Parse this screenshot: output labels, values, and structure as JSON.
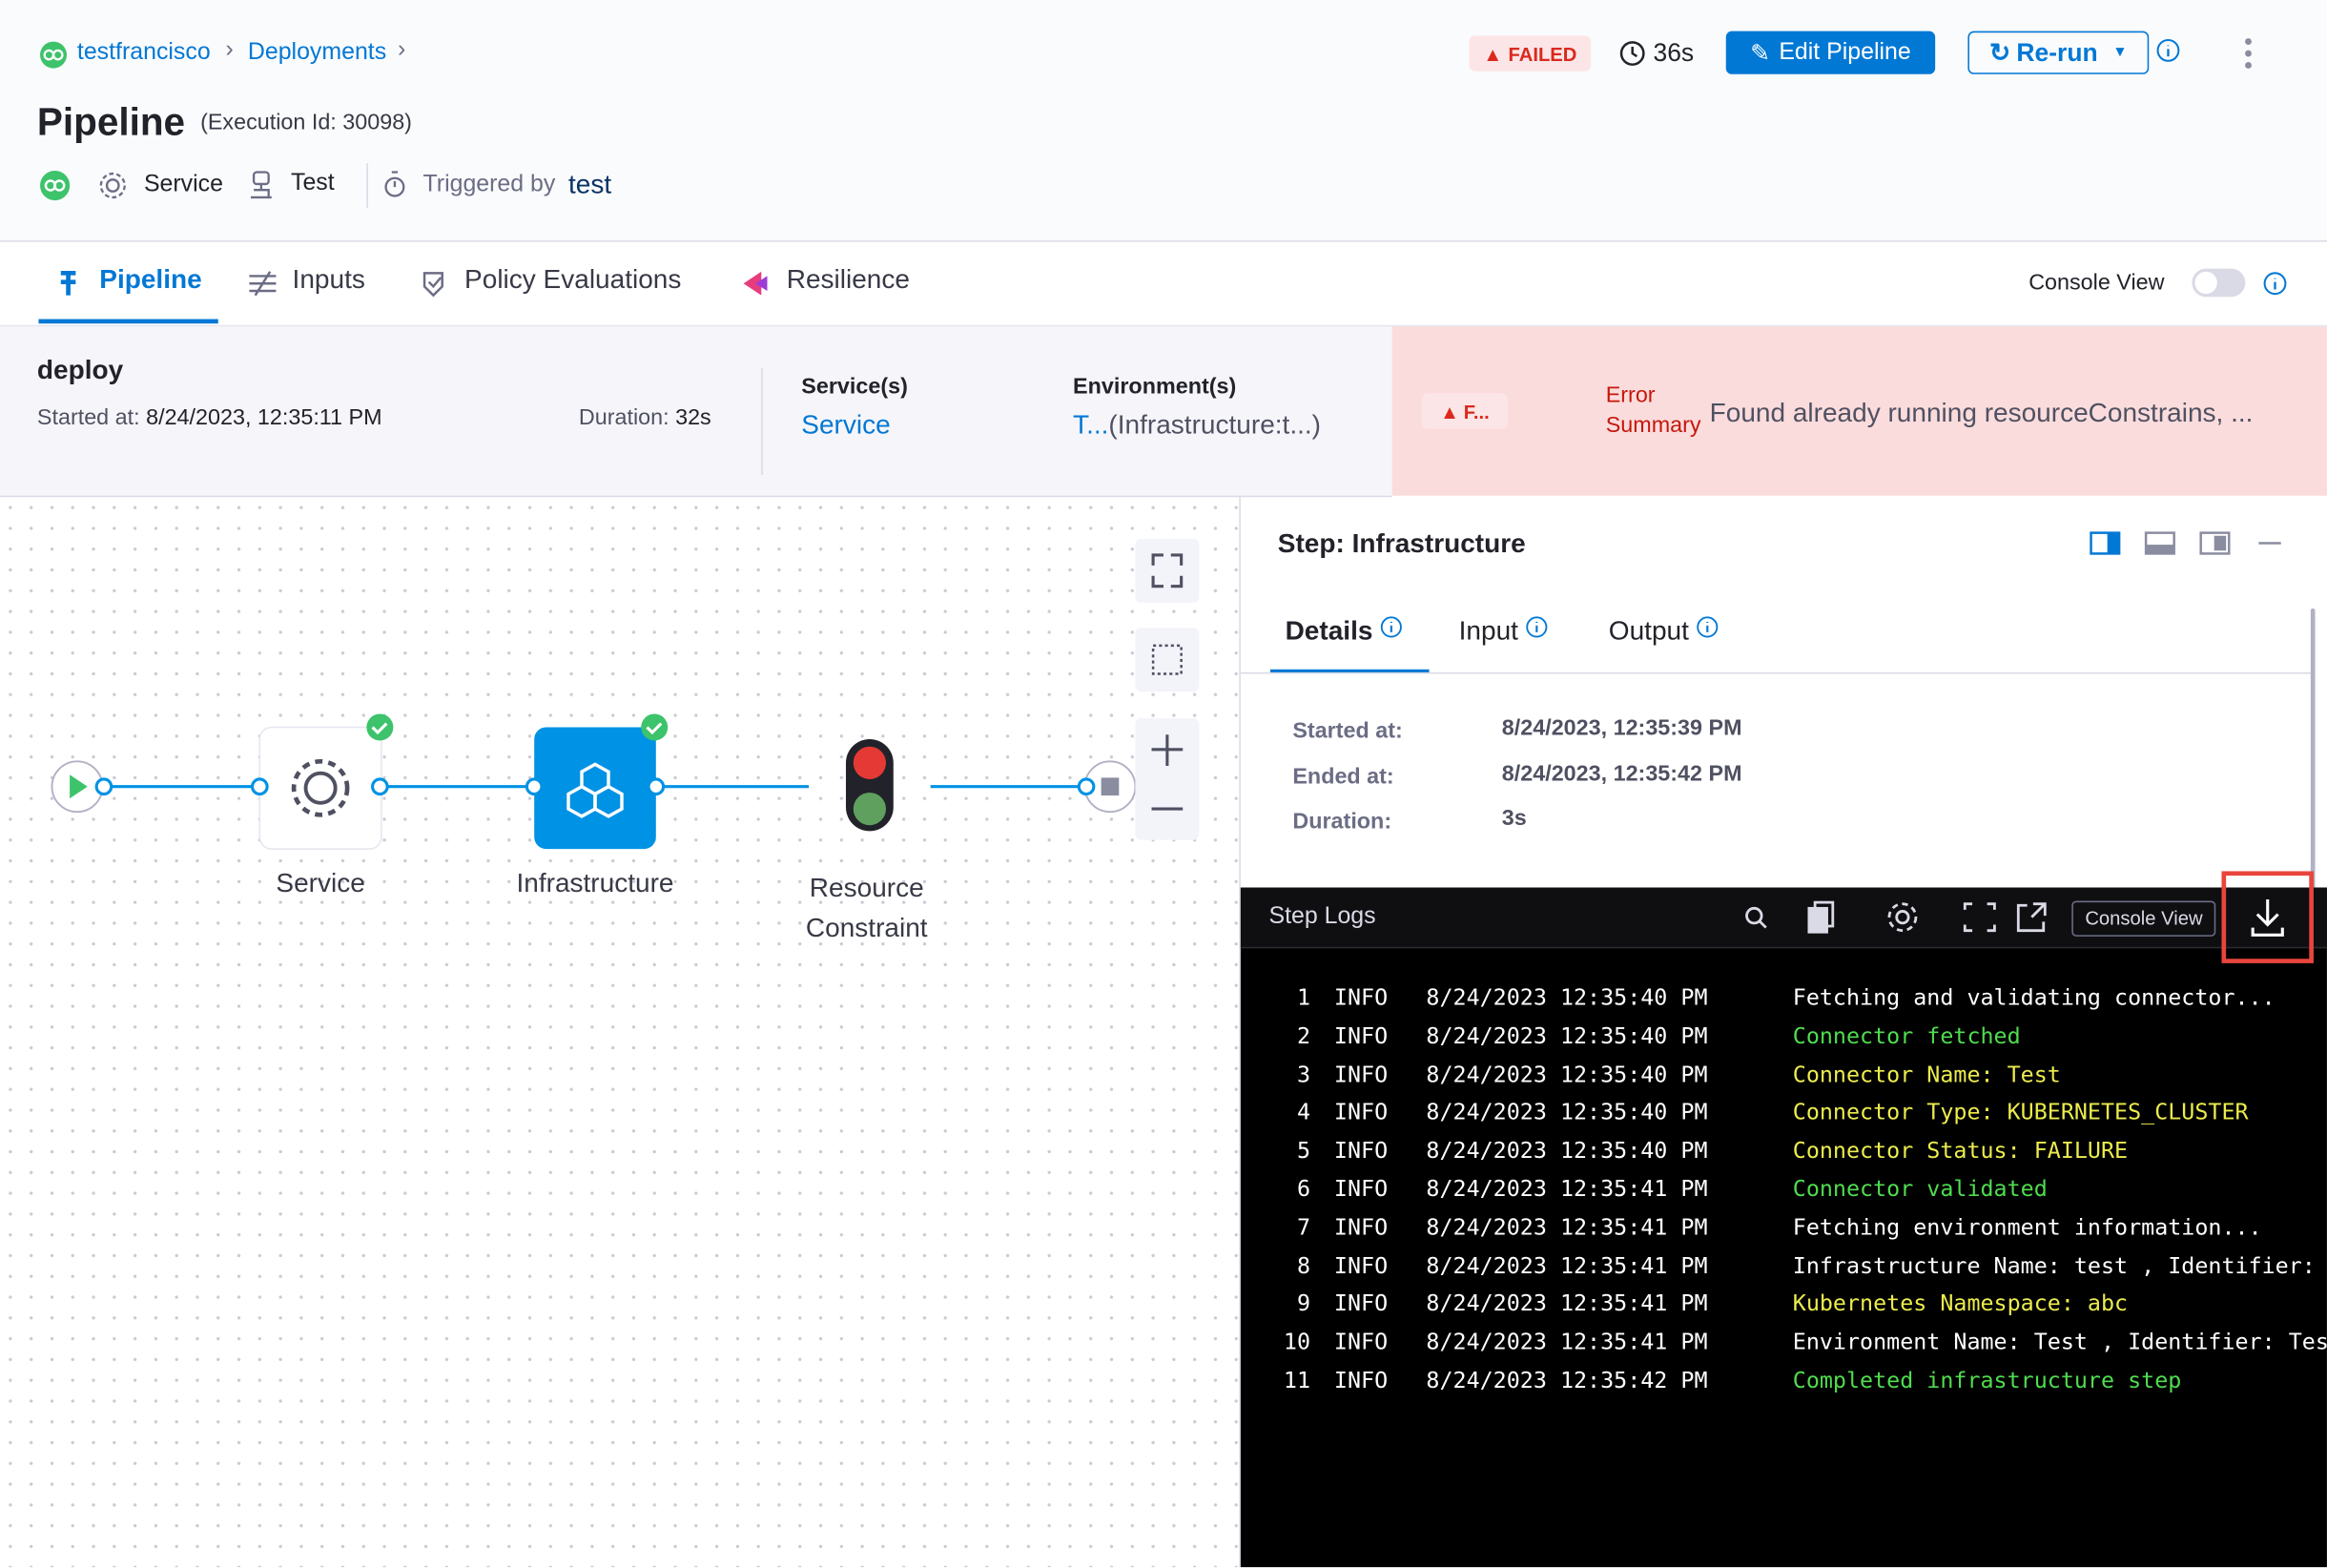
{
  "breadcrumbs": [
    "testfrancisco",
    "Deployments"
  ],
  "header": {
    "status": "FAILED",
    "duration": "36s",
    "edit_button": "Edit Pipeline",
    "rerun_button": "Re-run",
    "title": "Pipeline",
    "execution_id": "(Execution Id: 30098)",
    "service": "Service",
    "environment": "Test",
    "triggered_by_label": "Triggered by",
    "triggered_by": "test"
  },
  "tabs": [
    "Pipeline",
    "Inputs",
    "Policy Evaluations",
    "Resilience"
  ],
  "console_view_label": "Console View",
  "stage": {
    "name": "deploy",
    "started_label": "Started at:",
    "started": "8/24/2023, 12:35:11 PM",
    "duration_label": "Duration:",
    "duration": "32s",
    "services_label": "Service(s)",
    "services": "Service",
    "environments_label": "Environment(s)",
    "environment": "T...",
    "infrastructure": "(Infrastructure:t...)",
    "status": "F...",
    "error_label": "Error Summary",
    "error": "Found already running resourceConstrains, ..."
  },
  "graph": {
    "nodes": [
      "Service",
      "Infrastructure",
      "Resource Constraint"
    ]
  },
  "step": {
    "title": "Step: Infrastructure",
    "tabs": [
      "Details",
      "Input",
      "Output"
    ],
    "details": [
      {
        "label": "Started at:",
        "value": "8/24/2023, 12:35:39 PM"
      },
      {
        "label": "Ended at:",
        "value": "8/24/2023, 12:35:42 PM"
      },
      {
        "label": "Duration:",
        "value": "3s"
      }
    ]
  },
  "logs": {
    "title": "Step Logs",
    "console_view": "Console View",
    "lines": [
      {
        "n": 1,
        "level": "INFO",
        "time": "8/24/2023 12:35:40 PM",
        "message": "Fetching and validating connector...",
        "color": "#ffffff"
      },
      {
        "n": 2,
        "level": "INFO",
        "time": "8/24/2023 12:35:40 PM",
        "message": "Connector fetched",
        "color": "#4fdc4f"
      },
      {
        "n": 3,
        "level": "INFO",
        "time": "8/24/2023 12:35:40 PM",
        "message": "Connector Name: Test",
        "color": "#ecec4e"
      },
      {
        "n": 4,
        "level": "INFO",
        "time": "8/24/2023 12:35:40 PM",
        "message": "Connector Type: KUBERNETES_CLUSTER",
        "color": "#ecec4e"
      },
      {
        "n": 5,
        "level": "INFO",
        "time": "8/24/2023 12:35:40 PM",
        "message": "Connector Status: FAILURE",
        "color": "#ecec4e"
      },
      {
        "n": 6,
        "level": "INFO",
        "time": "8/24/2023 12:35:41 PM",
        "message": "Connector validated",
        "color": "#4fdc4f"
      },
      {
        "n": 7,
        "level": "INFO",
        "time": "8/24/2023 12:35:41 PM",
        "message": "Fetching environment information...",
        "color": "#ffffff"
      },
      {
        "n": 8,
        "level": "INFO",
        "time": "8/24/2023 12:35:41 PM",
        "message": "Infrastructure Name: test , Identifier: test",
        "color": "#ffffff"
      },
      {
        "n": 9,
        "level": "INFO",
        "time": "8/24/2023 12:35:41 PM",
        "message": "Kubernetes Namespace: abc",
        "color": "#ecec4e"
      },
      {
        "n": 10,
        "level": "INFO",
        "time": "8/24/2023 12:35:41 PM",
        "message": "Environment Name: Test , Identifier: Test",
        "color": "#ffffff"
      },
      {
        "n": 11,
        "level": "INFO",
        "time": "8/24/2023 12:35:42 PM",
        "message": "Completed infrastructure step",
        "color": "#4fdc4f"
      }
    ]
  }
}
